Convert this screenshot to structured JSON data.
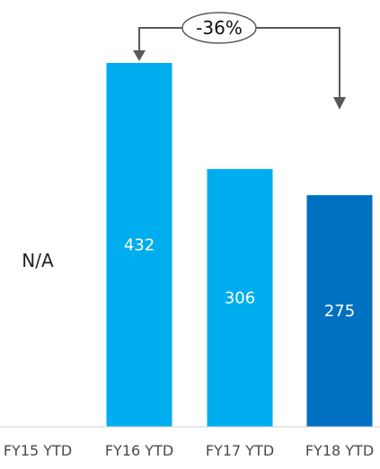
{
  "chart_data": {
    "type": "bar",
    "categories": [
      "FY15 YTD",
      "FY16 YTD",
      "FY17 YTD",
      "FY18 YTD"
    ],
    "values": [
      null,
      432,
      306,
      275
    ],
    "data_labels": [
      "N/A",
      "432",
      "306",
      "275"
    ],
    "annotation": {
      "text": "-36%",
      "from_category": "FY16 YTD",
      "to_category": "FY18 YTD"
    },
    "colors": {
      "bar": "#00AEEF",
      "highlight_bar": "#0070C0",
      "axis": "#cfcfcf",
      "arrow": "#595959"
    },
    "highlight_index": 3,
    "title": "",
    "xlabel": "",
    "ylabel": "",
    "grid": false
  }
}
